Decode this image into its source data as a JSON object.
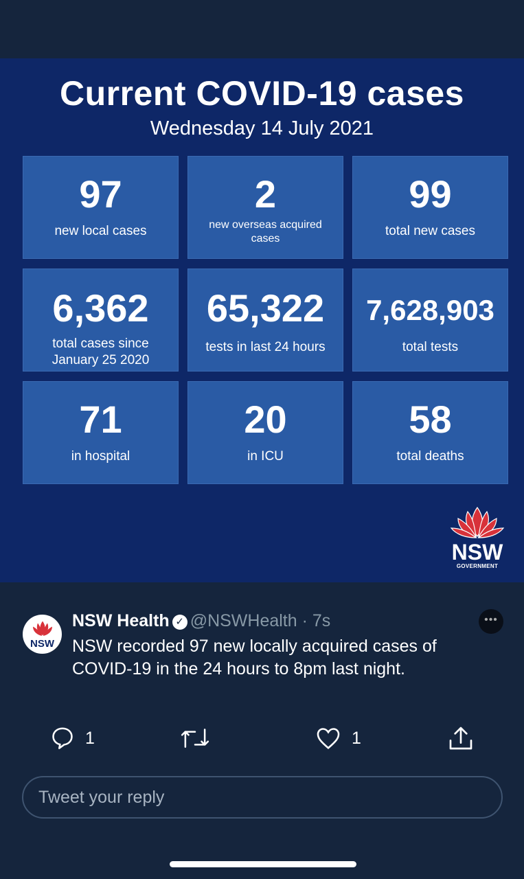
{
  "media": {
    "title": "Current COVID-19 cases",
    "date": "Wednesday 14 July 2021",
    "tiles": [
      {
        "value": "97",
        "label": "new local cases"
      },
      {
        "value": "2",
        "label": "new overseas acquired cases"
      },
      {
        "value": "99",
        "label": "total new cases"
      },
      {
        "value": "6,362",
        "label": "total cases since January 25 2020"
      },
      {
        "value": "65,322",
        "label": "tests in last 24 hours"
      },
      {
        "value": "7,628,903",
        "label": "total tests"
      },
      {
        "value": "71",
        "label": "in hospital"
      },
      {
        "value": "20",
        "label": "in ICU"
      },
      {
        "value": "58",
        "label": "total deaths"
      }
    ],
    "logo": {
      "text": "NSW",
      "subtext": "GOVERNMENT"
    }
  },
  "tweet": {
    "name": "NSW Health",
    "handle": "@NSWHealth",
    "time": "· 7s",
    "avatar_text": "NSW",
    "text": "NSW recorded 97 new locally acquired cases of COVID-19 in the 24 hours to 8pm last night.",
    "replies": "1",
    "likes": "1"
  },
  "reply": {
    "placeholder": "Tweet your reply"
  },
  "colors": {
    "background": "#15253d",
    "media_bg": "#0e2767",
    "tile": "#2a5ba5",
    "waratah_red": "#d8323a"
  }
}
